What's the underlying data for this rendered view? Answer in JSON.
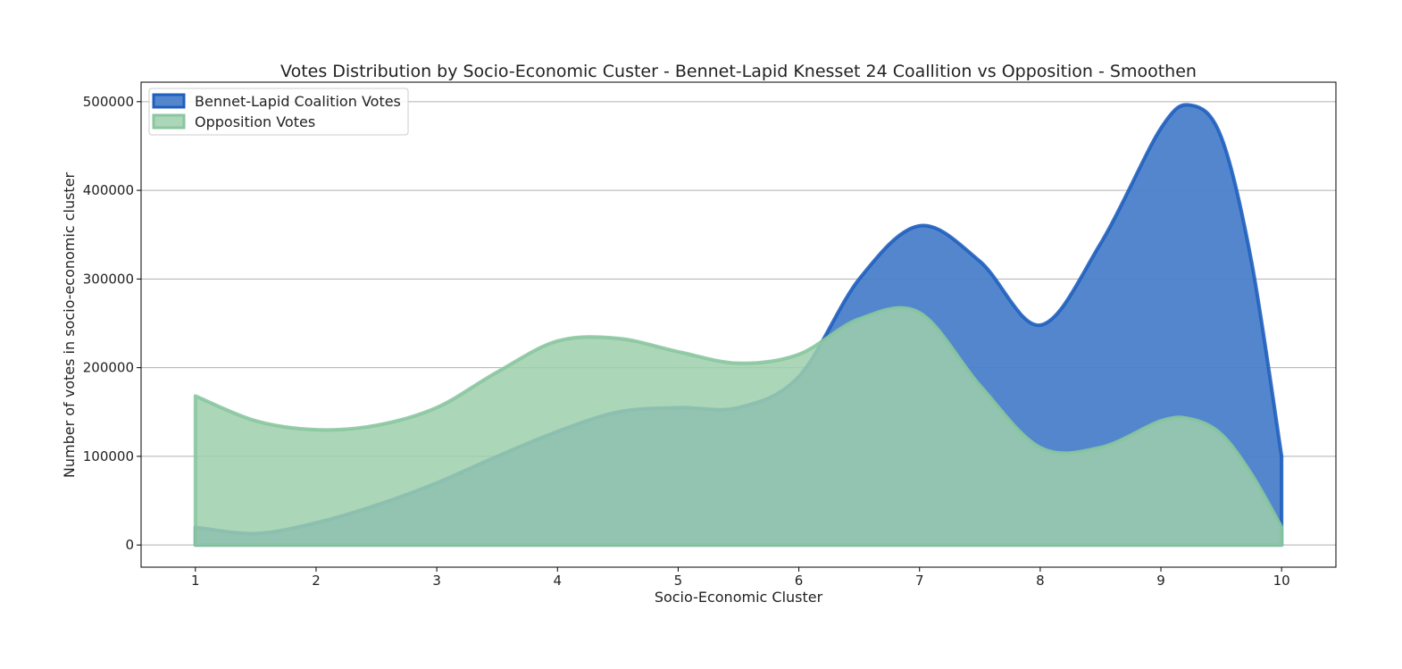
{
  "chart_data": {
    "type": "area",
    "title": "Votes Distribution by Socio-Economic Custer - Bennet-Lapid Knesset 24 Coallition vs Opposition - Smoothen",
    "xlabel": "Socio-Economic Cluster",
    "ylabel": "Number of votes in socio-economic cluster",
    "xlim": [
      0.55,
      10.45
    ],
    "ylim": [
      -25000,
      522000
    ],
    "x_ticks": [
      1,
      2,
      3,
      4,
      5,
      6,
      7,
      8,
      9,
      10
    ],
    "y_ticks": [
      0,
      100000,
      200000,
      300000,
      400000,
      500000
    ],
    "grid": "horizontal",
    "legend_position": "top-left",
    "series": [
      {
        "name": "Bennet-Lapid Coalition Votes",
        "color": "#1f5fbf",
        "fill": "#4a7fc9",
        "x": [
          1,
          1.5,
          2,
          2.5,
          3,
          3.5,
          4,
          4.5,
          5,
          5.5,
          6,
          6.5,
          7,
          7.5,
          8,
          8.5,
          9,
          9.25,
          9.5,
          9.75,
          10
        ],
        "values": [
          20000,
          13000,
          25000,
          45000,
          70000,
          100000,
          128000,
          150000,
          155000,
          155000,
          190000,
          300000,
          360000,
          320000,
          248000,
          340000,
          470000,
          496000,
          460000,
          320000,
          100000
        ]
      },
      {
        "name": "Opposition Votes",
        "color": "#8ac6a0",
        "fill": "#9ecfac",
        "x": [
          1,
          1.5,
          2,
          2.5,
          3,
          3.5,
          4,
          4.5,
          5,
          5.5,
          6,
          6.5,
          7,
          7.5,
          8,
          8.5,
          9,
          9.25,
          9.5,
          9.75,
          10
        ],
        "values": [
          168000,
          140000,
          130000,
          135000,
          155000,
          195000,
          230000,
          233000,
          218000,
          205000,
          215000,
          255000,
          262000,
          180000,
          110000,
          110000,
          140000,
          142000,
          125000,
          80000,
          20000
        ]
      }
    ]
  }
}
